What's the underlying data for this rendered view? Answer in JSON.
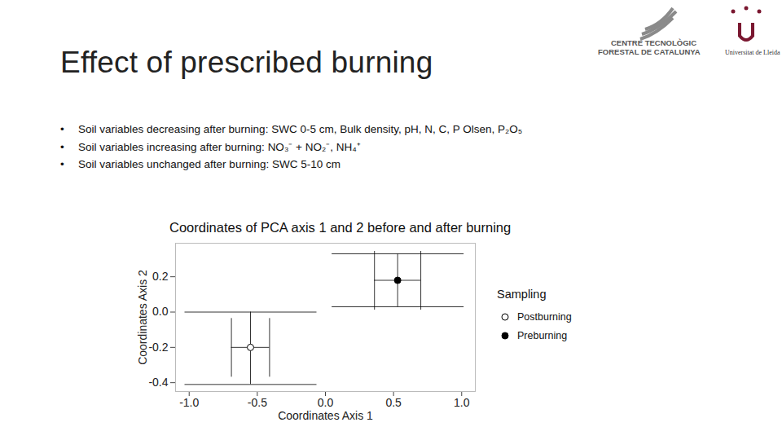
{
  "slide": {
    "title": "Effect of prescribed burning",
    "bullets": [
      {
        "label": "Soil variables decreasing after burning:",
        "text": "SWC 0-5 cm, Bulk density, pH, N, C, P Olsen, P₂O₅"
      },
      {
        "label": "Soil variables increasing after burning:",
        "text": "NO₃⁻ + NO₂⁻, NH₄⁺"
      },
      {
        "label": "Soil variables unchanged after burning:",
        "text": "SWC 5-10 cm"
      }
    ],
    "logo": {
      "lines": [
        "CENTRE TECNOLÒGIC",
        "FORESTAL DE CATALUNYA"
      ],
      "university": "Universitat de Lleida"
    }
  },
  "chart_data": {
    "type": "scatter",
    "title": "Coordinates of PCA axis 1 and 2 before and after burning",
    "x_label": "Coordinates Axis 1",
    "y_label": "Coordinates Axis 2",
    "legend_title": "Sampling",
    "legend": "right",
    "grid": false,
    "xlim": [
      -1.1,
      1.1
    ],
    "ylim": [
      -0.45,
      0.39
    ],
    "xticks": [
      {
        "value": -1.0,
        "label": "-1.0"
      },
      {
        "value": -0.5,
        "label": "-0.5"
      },
      {
        "value": 0,
        "label": "0.0"
      },
      {
        "value": 0.5,
        "label": "0.5"
      },
      {
        "value": 1.0,
        "label": "1.0"
      }
    ],
    "yticks": [
      {
        "value": -0.4,
        "label": "-0.4"
      },
      {
        "value": -0.2,
        "label": "-0.2"
      },
      {
        "value": 0,
        "label": "0.0"
      },
      {
        "value": 0.2,
        "label": "0.2"
      }
    ],
    "series": [
      {
        "name": "Postburning",
        "color": "#000000",
        "marker": "open",
        "x": [
          -0.55
        ],
        "values": [
          -0.2
        ],
        "x_error": [
          [
            -0.69,
            -0.41
          ]
        ],
        "y_error": [
          [
            -0.41,
            0.0
          ]
        ]
      },
      {
        "name": "Preburning",
        "color": "#000000",
        "marker": "filled",
        "x": [
          0.53
        ],
        "values": [
          0.18
        ],
        "x_error": [
          [
            0.36,
            0.7
          ]
        ],
        "y_error": [
          [
            0.03,
            0.33
          ]
        ]
      }
    ]
  }
}
